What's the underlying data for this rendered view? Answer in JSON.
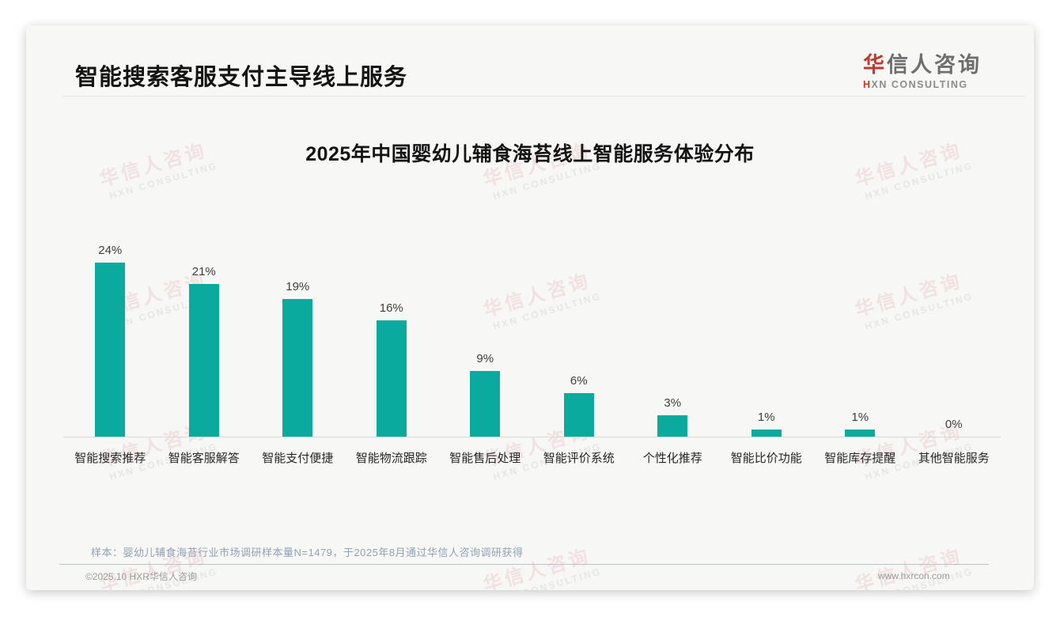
{
  "page": {
    "title": "智能搜索客服支付主导线上服务",
    "logo": {
      "zh_first": "华",
      "zh_rest": "信人咨询",
      "en_first": "H",
      "en_rest": "XN CONSULTING"
    },
    "note": "样本：婴幼儿辅食海苔行业市场调研样本量N=1479，于2025年8月通过华信人咨询调研获得",
    "footer_left": "©2025.10 HXR华信人咨询",
    "footer_right": "www.hxrcon.com"
  },
  "watermark": {
    "line1": "华信人咨询",
    "line2": "HXN CONSULTING"
  },
  "colors": {
    "bar_teal": "#0baa9f",
    "logo_red": "#c4372b",
    "title_black": "#141414",
    "note_bluegray": "#92a2b3",
    "footer_gray": "#9b9b9b",
    "axis_gray": "#d8d8d8"
  },
  "chart_data": {
    "type": "bar",
    "title": "2025年中国婴幼儿辅食海苔线上智能服务体验分布",
    "categories": [
      "智能搜索推荐",
      "智能客服解答",
      "智能支付便捷",
      "智能物流跟踪",
      "智能售后处理",
      "智能评价系统",
      "个性化推荐",
      "智能比价功能",
      "智能库存提醒",
      "其他智能服务"
    ],
    "values": [
      24,
      21,
      19,
      16,
      9,
      6,
      3,
      1,
      1,
      0
    ],
    "value_labels": [
      "24%",
      "21%",
      "19%",
      "16%",
      "9%",
      "6%",
      "3%",
      "1%",
      "1%",
      "0%"
    ],
    "bar_color": "#0baa9f",
    "xlabel": "",
    "ylabel": "",
    "ylim": [
      0,
      26
    ],
    "grid": false,
    "legend": false,
    "value_labels_position": "above-bar"
  }
}
